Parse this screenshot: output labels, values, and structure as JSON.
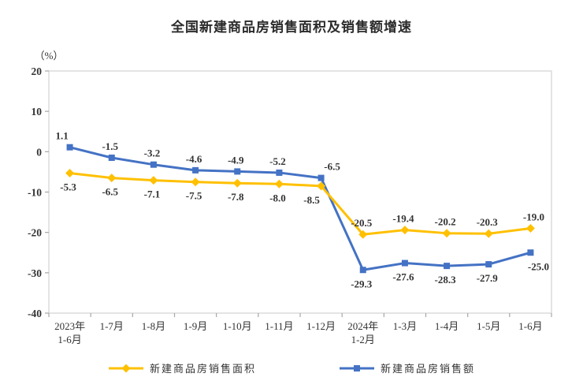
{
  "title": "全国新建商品房销售面积及销售额增速",
  "chart_data": {
    "type": "line",
    "title": "全国新建商品房销售面积及销售额增速",
    "ylabel": "（%）",
    "xlabel": "",
    "ylim": [
      -40,
      20
    ],
    "ytick_step": 10,
    "grid": false,
    "legend_position": "bottom",
    "categories": [
      "2023年\n1-6月",
      "1-7月",
      "1-8月",
      "1-9月",
      "1-10月",
      "1-11月",
      "1-12月",
      "2024年\n1-2月",
      "1-3月",
      "1-4月",
      "1-5月",
      "1-6月"
    ],
    "series": [
      {
        "name": "新建商品房销售面积",
        "marker": "diamond",
        "color": "#FFC000",
        "values": [
          -5.3,
          -6.5,
          -7.1,
          -7.5,
          -7.8,
          -8.0,
          -8.5,
          -20.5,
          -19.4,
          -20.2,
          -20.3,
          -19.0
        ]
      },
      {
        "name": "新建商品房销售额",
        "marker": "square",
        "color": "#4472C4",
        "values": [
          1.1,
          -1.5,
          -3.2,
          -4.6,
          -4.9,
          -5.2,
          -6.5,
          -29.3,
          -27.6,
          -28.3,
          -27.9,
          -25.0
        ]
      }
    ],
    "colors": {
      "axis_border": "#d9d9d9",
      "tick": "#a6a6a6",
      "label_text": "#333333",
      "title_text": "#2b2b2b"
    }
  }
}
